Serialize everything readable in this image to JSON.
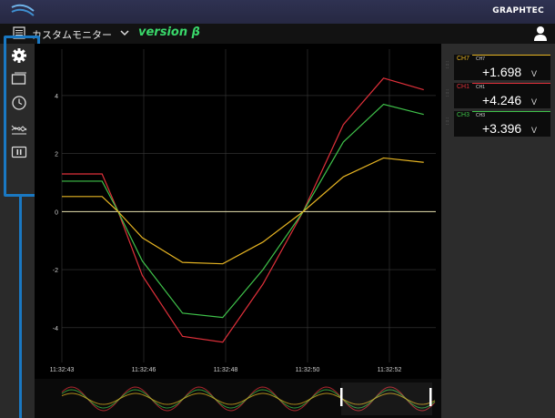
{
  "header": {
    "brand": "GRAPHTEC"
  },
  "titlebar": {
    "title": "カスタムモニター",
    "version": "version β"
  },
  "sidebar": {
    "icons": [
      "gear-icon",
      "window-icon",
      "clock-icon",
      "waveform-icon",
      "pause-icon"
    ]
  },
  "meters": [
    {
      "channel": "CH7",
      "sub": "CH7",
      "value": "+1.698",
      "unit": "V",
      "color": "#e6b422"
    },
    {
      "channel": "CH1",
      "sub": "CH1",
      "value": "+4.246",
      "unit": "V",
      "color": "#e0303a"
    },
    {
      "channel": "CH3",
      "sub": "CH3",
      "value": "+3.396",
      "unit": "V",
      "color": "#3fc24a"
    }
  ],
  "chart_data": {
    "type": "line",
    "ylim": [
      -5.2,
      5.6
    ],
    "y_ticks": [
      "4",
      "2",
      "0",
      "-2",
      "-4"
    ],
    "x_ticks": [
      "11:32:43",
      "11:32:46",
      "11:32:48",
      "11:32:50",
      "11:32:52"
    ],
    "grid": true,
    "series": [
      {
        "color": "#e0303a",
        "x": [
          0,
          1,
          1.4,
          2,
          3,
          4,
          5,
          6,
          7,
          8,
          9,
          10
        ],
        "y": [
          1.3,
          1.3,
          0,
          -2.2,
          -4.3,
          -4.5,
          -2.5,
          0,
          3.0,
          4.6,
          4.2,
          null
        ]
      },
      {
        "color": "#3fc24a",
        "x": [
          0,
          1,
          1.4,
          2,
          3,
          4,
          5,
          6,
          7,
          8,
          9,
          10
        ],
        "y": [
          1.05,
          1.05,
          0,
          -1.7,
          -3.5,
          -3.65,
          -2.0,
          0,
          2.4,
          3.7,
          3.35,
          null
        ]
      },
      {
        "color": "#e6b422",
        "x": [
          0,
          1,
          1.4,
          2,
          3,
          4,
          5,
          6,
          7,
          8,
          9,
          10
        ],
        "y": [
          0.52,
          0.52,
          0,
          -0.9,
          -1.75,
          -1.8,
          -1.05,
          0,
          1.2,
          1.85,
          1.7,
          null
        ]
      }
    ]
  }
}
